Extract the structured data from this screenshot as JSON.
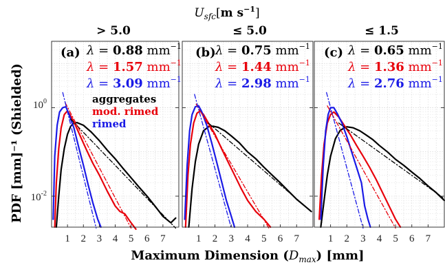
{
  "figure": {
    "super_title": {
      "sym": "U",
      "sub": "sfc",
      "unit_pre": "[",
      "unit_m": "m",
      "unit_s": " s",
      "unit_exp": "−1",
      "unit_post": "]"
    }
  },
  "chart_data": [
    {
      "type": "line",
      "panel_label": "(a)",
      "title": "> 5.0",
      "xlim": [
        0,
        8
      ],
      "ylim_log10": [
        -2.7,
        1.5
      ],
      "yscale": "log",
      "grid": true,
      "xticks": [
        1,
        2,
        3,
        4,
        5,
        6,
        7
      ],
      "lambda": [
        {
          "text_prefix": "λ = ",
          "value": "0.88",
          "unit": " mm",
          "exp": "−1",
          "color": "#000000"
        },
        {
          "text_prefix": "λ = ",
          "value": "1.57",
          "unit": " mm",
          "exp": "−1",
          "color": "#e8000b"
        },
        {
          "text_prefix": "λ = ",
          "value": "3.09",
          "unit": " mm",
          "exp": "−1",
          "color": "#1a1ae6"
        }
      ],
      "legend": [
        {
          "label": "aggregates",
          "color": "#000000"
        },
        {
          "label": "mod. rimed",
          "color": "#e8000b"
        },
        {
          "label": "rimed",
          "color": "#1a1ae6"
        }
      ],
      "series": [
        {
          "group": "aggregates",
          "color": "#000000",
          "x": [
            0.3,
            0.45,
            0.6,
            0.8,
            1.0,
            1.2,
            1.4,
            1.6,
            2.0,
            2.5,
            3.0,
            3.5,
            4.0,
            4.5,
            5.0,
            5.5,
            6.0,
            6.5,
            7.0,
            7.5,
            7.8
          ],
          "y": [
            0.002,
            0.01,
            0.04,
            0.12,
            0.25,
            0.38,
            0.45,
            0.46,
            0.4,
            0.28,
            0.18,
            0.11,
            0.07,
            0.042,
            0.026,
            0.016,
            0.01,
            0.006,
            0.0035,
            0.0025,
            0.0032
          ]
        },
        {
          "group": "mod. rimed",
          "color": "#e8000b",
          "x": [
            0.2,
            0.3,
            0.45,
            0.6,
            0.8,
            1.0,
            1.2,
            1.5,
            1.8,
            2.2,
            2.6,
            3.0,
            3.5,
            4.0,
            4.3,
            4.6,
            5.0,
            5.3
          ],
          "y": [
            0.002,
            0.02,
            0.12,
            0.35,
            0.7,
            0.85,
            0.65,
            0.4,
            0.23,
            0.11,
            0.055,
            0.03,
            0.013,
            0.006,
            0.0045,
            0.004,
            0.0025,
            0.0018
          ]
        },
        {
          "group": "rimed",
          "color": "#1a1ae6",
          "x": [
            0.1,
            0.2,
            0.35,
            0.5,
            0.7,
            0.9,
            1.1,
            1.4,
            1.7,
            2.0,
            2.3,
            2.6,
            2.9,
            3.1
          ],
          "y": [
            0.003,
            0.08,
            0.4,
            0.8,
            1.0,
            1.05,
            0.7,
            0.35,
            0.13,
            0.05,
            0.018,
            0.007,
            0.003,
            0.002
          ]
        },
        {
          "group": "aggregates",
          "fit": true,
          "color": "#000000",
          "x": [
            1.2,
            7.8
          ],
          "y": [
            0.55,
            0.0019
          ]
        },
        {
          "group": "mod. rimed",
          "fit": true,
          "color": "#e8000b",
          "x": [
            0.85,
            5.0
          ],
          "y": [
            1.3,
            0.0019
          ]
        },
        {
          "group": "rimed",
          "fit": true,
          "color": "#1a1ae6",
          "x": [
            0.7,
            2.8
          ],
          "y": [
            2.2,
            0.0019
          ]
        }
      ]
    },
    {
      "type": "line",
      "panel_label": "(b)",
      "title": "≤ 5.0",
      "xlim": [
        0,
        8
      ],
      "ylim_log10": [
        -2.7,
        1.5
      ],
      "yscale": "log",
      "grid": true,
      "xticks": [
        1,
        2,
        3,
        4,
        5,
        6,
        7
      ],
      "lambda": [
        {
          "text_prefix": "λ = ",
          "value": "0.75",
          "unit": " mm",
          "exp": "−1",
          "color": "#000000"
        },
        {
          "text_prefix": "λ = ",
          "value": "1.44",
          "unit": " mm",
          "exp": "−1",
          "color": "#e8000b"
        },
        {
          "text_prefix": "λ = ",
          "value": "2.98",
          "unit": " mm",
          "exp": "−1",
          "color": "#1a1ae6"
        }
      ],
      "series": [
        {
          "group": "aggregates",
          "color": "#000000",
          "x": [
            0.4,
            0.6,
            0.8,
            1.0,
            1.3,
            1.6,
            1.9,
            2.2,
            2.6,
            3.0,
            3.5,
            4.0,
            4.5,
            5.0,
            5.5,
            6.0,
            6.5,
            7.0,
            7.5,
            7.9
          ],
          "y": [
            0.002,
            0.015,
            0.06,
            0.15,
            0.3,
            0.37,
            0.38,
            0.36,
            0.3,
            0.23,
            0.16,
            0.1,
            0.07,
            0.045,
            0.03,
            0.02,
            0.013,
            0.0085,
            0.006,
            0.0045
          ]
        },
        {
          "group": "mod. rimed",
          "color": "#e8000b",
          "x": [
            0.2,
            0.35,
            0.5,
            0.7,
            0.9,
            1.1,
            1.3,
            1.6,
            2.0,
            2.4,
            2.8,
            3.2,
            3.6,
            4.0,
            4.5,
            5.0,
            5.4
          ],
          "y": [
            0.002,
            0.03,
            0.15,
            0.45,
            0.75,
            0.85,
            0.7,
            0.45,
            0.25,
            0.12,
            0.06,
            0.03,
            0.015,
            0.008,
            0.0045,
            0.003,
            0.002
          ]
        },
        {
          "group": "rimed",
          "color": "#1a1ae6",
          "x": [
            0.15,
            0.3,
            0.45,
            0.6,
            0.8,
            1.0,
            1.2,
            1.5,
            1.8,
            2.1,
            2.4,
            2.7,
            3.0,
            3.2
          ],
          "y": [
            0.003,
            0.05,
            0.3,
            0.7,
            1.05,
            1.1,
            0.8,
            0.4,
            0.16,
            0.06,
            0.022,
            0.008,
            0.0035,
            0.002
          ]
        },
        {
          "group": "aggregates",
          "fit": true,
          "color": "#000000",
          "x": [
            1.6,
            7.9
          ],
          "y": [
            0.45,
            0.0045
          ]
        },
        {
          "group": "mod. rimed",
          "fit": true,
          "color": "#e8000b",
          "x": [
            0.85,
            5.3
          ],
          "y": [
            1.2,
            0.0019
          ]
        },
        {
          "group": "rimed",
          "fit": true,
          "color": "#1a1ae6",
          "x": [
            0.75,
            3.0
          ],
          "y": [
            2.0,
            0.0019
          ]
        }
      ]
    },
    {
      "type": "line",
      "panel_label": "(c)",
      "title": "≤ 1.5",
      "xlim": [
        0,
        8
      ],
      "ylim_log10": [
        -2.7,
        1.5
      ],
      "yscale": "log",
      "grid": true,
      "xticks": [
        1,
        2,
        3,
        4,
        5,
        6,
        7
      ],
      "lambda": [
        {
          "text_prefix": "λ = ",
          "value": "0.65",
          "unit": " mm",
          "exp": "−1",
          "color": "#000000"
        },
        {
          "text_prefix": "λ = ",
          "value": "1.36",
          "unit": " mm",
          "exp": "−1",
          "color": "#e8000b"
        },
        {
          "text_prefix": "λ = ",
          "value": "2.76",
          "unit": " mm",
          "exp": "−1",
          "color": "#1a1ae6"
        }
      ],
      "series": [
        {
          "group": "aggregates",
          "color": "#000000",
          "x": [
            0.4,
            0.6,
            0.8,
            1.0,
            1.3,
            1.6,
            2.0,
            2.4,
            2.8,
            3.2,
            3.6,
            4.0,
            4.5,
            5.0,
            5.5,
            6.0,
            6.5,
            7.0,
            7.5,
            8.0
          ],
          "y": [
            0.002,
            0.008,
            0.03,
            0.08,
            0.2,
            0.31,
            0.37,
            0.35,
            0.3,
            0.24,
            0.19,
            0.14,
            0.1,
            0.068,
            0.05,
            0.035,
            0.025,
            0.017,
            0.012,
            0.008
          ]
        },
        {
          "group": "mod. rimed",
          "color": "#e8000b",
          "x": [
            0.3,
            0.45,
            0.6,
            0.8,
            1.0,
            1.2,
            1.5,
            1.8,
            2.2,
            2.6,
            3.0,
            3.4,
            3.8,
            4.2,
            4.6,
            5.0,
            5.3
          ],
          "y": [
            0.003,
            0.03,
            0.15,
            0.45,
            0.7,
            0.8,
            0.62,
            0.42,
            0.25,
            0.14,
            0.08,
            0.045,
            0.024,
            0.012,
            0.006,
            0.003,
            0.002
          ]
        },
        {
          "group": "rimed",
          "color": "#1a1ae6",
          "x": [
            0.4,
            0.55,
            0.7,
            0.85,
            1.0,
            1.2,
            1.4,
            1.7,
            2.0,
            2.3,
            2.6,
            2.9,
            3.1,
            3.3,
            3.45
          ],
          "y": [
            0.003,
            0.05,
            0.3,
            0.7,
            1.0,
            1.0,
            0.75,
            0.45,
            0.22,
            0.1,
            0.045,
            0.02,
            0.006,
            0.003,
            0.002
          ]
        },
        {
          "group": "aggregates",
          "fit": true,
          "color": "#000000",
          "x": [
            1.5,
            8.0
          ],
          "y": [
            0.45,
            0.0088
          ]
        },
        {
          "group": "mod. rimed",
          "fit": true,
          "color": "#e8000b",
          "x": [
            0.8,
            5.0
          ],
          "y": [
            1.1,
            0.0019
          ]
        },
        {
          "group": "rimed",
          "fit": true,
          "color": "#1a1ae6",
          "x": [
            0.75,
            3.0
          ],
          "y": [
            2.2,
            0.0019
          ]
        }
      ]
    }
  ],
  "yticks": [
    {
      "base": "10",
      "exp": "0",
      "value": 1
    },
    {
      "base": "10",
      "exp": "-2",
      "value": 0.01
    }
  ],
  "axes": {
    "ylabel": "PDF [mm]⁻¹ (Shielded)",
    "xlabel": {
      "pre": "Maximum Dimension (",
      "sym": "D",
      "sub": "max",
      "post": ") [mm]"
    }
  }
}
